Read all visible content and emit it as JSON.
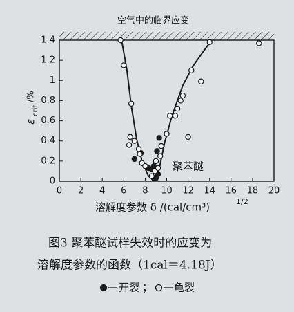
{
  "chart_data": {
    "type": "scatter",
    "annotation": "空气中的临界应变",
    "inner_label": "聚苯醚",
    "y_label": {
      "symbol": "ε",
      "subscript": "crit",
      "unit": "/%"
    },
    "x_label": {
      "text": "溶解度参数 δ /(cal/cm³)",
      "superscript": "1/2"
    },
    "caption": [
      "图3  聚苯醚试样失效时的应变为",
      "溶解度参数的函数（1cal＝4.18J）"
    ],
    "xlim": [
      0,
      20
    ],
    "xticks": [
      0,
      2,
      4,
      6,
      8,
      10,
      12,
      14,
      16,
      18,
      20
    ],
    "ylim": [
      0,
      1.4
    ],
    "yticks": [
      0,
      0.2,
      0.4,
      0.6,
      0.8,
      1.0,
      1.2,
      1.4
    ],
    "color": "#1a1a1a",
    "series": [
      {
        "name": "开裂",
        "marker": "filled",
        "x": [
          7.0,
          7.6,
          8.3,
          8.6,
          8.8,
          9.2,
          9.1,
          9.3,
          8.8,
          9.0
        ],
        "values": [
          0.22,
          0.28,
          0.13,
          0.12,
          0.03,
          0.07,
          0.3,
          0.43,
          0.15,
          0.03
        ]
      },
      {
        "name": "龟裂",
        "marker": "open",
        "x": [
          5.7,
          6.0,
          6.7,
          6.6,
          6.5,
          7.0,
          7.4,
          7.5,
          7.7,
          8.0,
          8.6,
          8.9,
          9.2,
          9.0,
          9.4,
          9.5,
          10.0,
          10.3,
          10.8,
          11.0,
          11.3,
          11.5,
          12.0,
          12.3,
          13.2,
          14.0,
          18.6
        ],
        "values": [
          1.4,
          1.15,
          0.77,
          0.44,
          0.36,
          0.4,
          0.32,
          0.27,
          0.18,
          0.15,
          0.05,
          0.1,
          0.13,
          0.2,
          0.25,
          0.35,
          0.47,
          0.65,
          0.65,
          0.72,
          0.8,
          0.85,
          0.44,
          1.1,
          0.99,
          1.38,
          1.37
        ]
      }
    ],
    "curve": {
      "x": [
        5.8,
        6.3,
        6.7,
        7.2,
        7.7,
        8.3,
        8.8,
        9.3,
        9.8,
        10.5,
        11.5,
        12.5,
        13.5,
        14.2
      ],
      "values": [
        1.4,
        1.1,
        0.75,
        0.42,
        0.2,
        0.05,
        0.02,
        0.12,
        0.38,
        0.65,
        0.95,
        1.15,
        1.3,
        1.4
      ]
    }
  }
}
